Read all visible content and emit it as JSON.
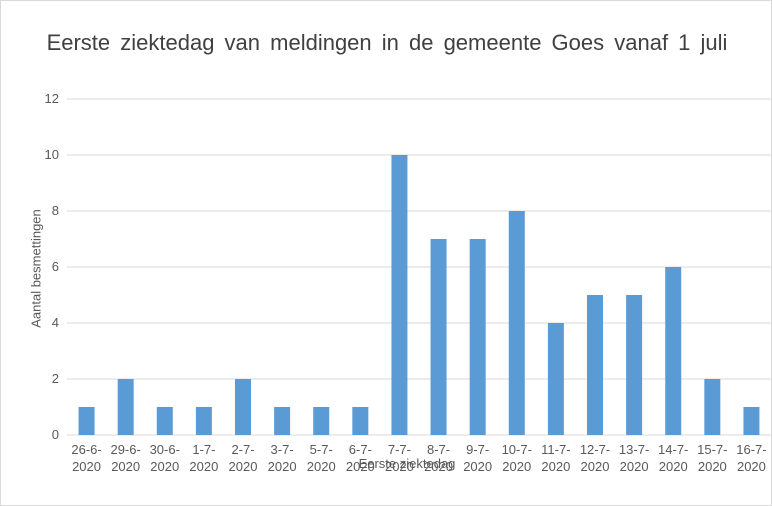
{
  "chart_data": {
    "type": "bar",
    "title": "Eerste ziektedag van meldingen in de gemeente Goes vanaf 1 juli",
    "x_label": "Eerste ziektedag",
    "y_label": "Aantal besmettingen",
    "categories": [
      "26-6-2020",
      "29-6-2020",
      "30-6-2020",
      "1-7-2020",
      "2-7-2020",
      "3-7-2020",
      "5-7-2020",
      "6-7-2020",
      "7-7-2020",
      "8-7-2020",
      "9-7-2020",
      "10-7-2020",
      "11-7-2020",
      "12-7-2020",
      "13-7-2020",
      "14-7-2020",
      "15-7-2020",
      "16-7-2020"
    ],
    "values": [
      1,
      2,
      1,
      1,
      2,
      1,
      1,
      1,
      10,
      7,
      7,
      8,
      4,
      5,
      5,
      6,
      2,
      1
    ],
    "color": "#5b9bd5",
    "ylim": [
      0,
      12
    ],
    "yticks": [
      0,
      2,
      4,
      6,
      8,
      10,
      12
    ],
    "grid": true
  }
}
